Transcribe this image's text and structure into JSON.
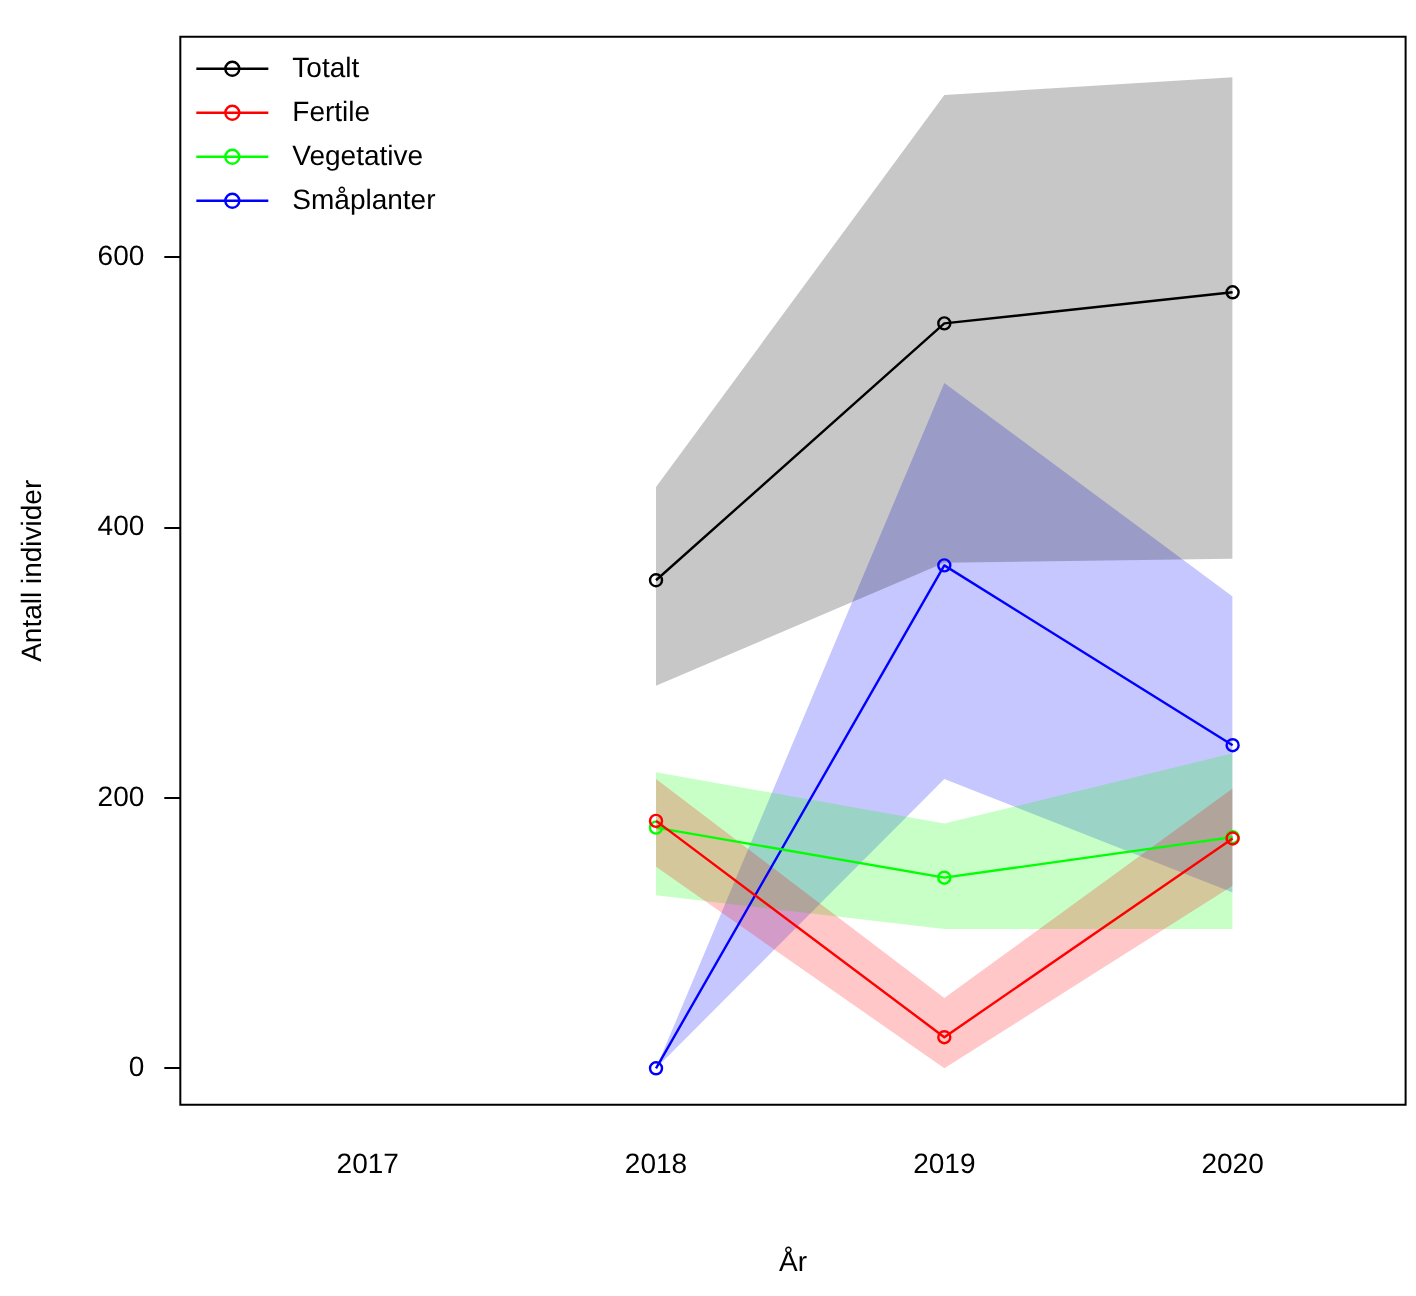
{
  "chart_data": {
    "type": "line",
    "xlabel": "År",
    "ylabel": "Antall individer",
    "x": [
      2018,
      2019,
      2020
    ],
    "xlim": [
      2016.35,
      2020.6
    ],
    "xticks": [
      2017,
      2018,
      2019,
      2020
    ],
    "ylim": [
      -27,
      763
    ],
    "yticks": [
      0,
      200,
      400,
      600
    ],
    "grid": false,
    "legend": "top left",
    "marker": "circle",
    "line_style": "solid",
    "series": [
      {
        "name": "Totalt",
        "color": "#000000",
        "values": [
          361,
          551,
          574
        ],
        "lower": [
          283,
          374,
          377
        ],
        "upper": [
          430,
          720,
          733
        ]
      },
      {
        "name": "Fertile",
        "color": "#ff0000",
        "values": [
          183,
          23,
          170
        ],
        "lower": [
          149,
          0,
          135
        ],
        "upper": [
          214,
          52,
          207
        ]
      },
      {
        "name": "Vegetative",
        "color": "#00ff00",
        "values": [
          178,
          141,
          171
        ],
        "lower": [
          128,
          103,
          103
        ],
        "upper": [
          219,
          181,
          233
        ]
      },
      {
        "name": "Småplanter",
        "color": "#0000ff",
        "values": [
          0,
          372,
          239
        ],
        "lower": [
          0,
          214,
          130
        ],
        "upper": [
          0,
          507,
          349
        ]
      }
    ]
  }
}
